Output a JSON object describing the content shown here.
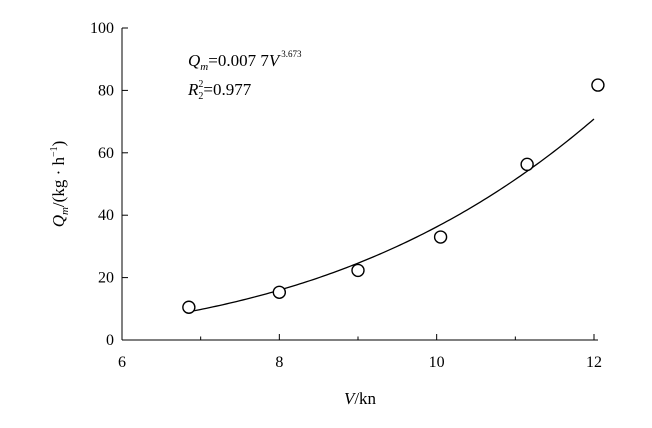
{
  "chart_data": {
    "type": "scatter",
    "title": "",
    "xlabel": {
      "var": "V",
      "unit": "/kn"
    },
    "ylabel": {
      "var": "Q",
      "sub": "m",
      "unit_open": "/(kg · h",
      "unit_exp": "−1",
      "unit_close": ")"
    },
    "xlim": [
      6,
      12
    ],
    "ylim": [
      0,
      100
    ],
    "x_ticks": [
      "6",
      "8",
      "10",
      "12"
    ],
    "y_ticks": [
      "0",
      "20",
      "40",
      "60",
      "80",
      "100"
    ],
    "x_minor_step": 1,
    "grid": false,
    "legend": "none",
    "series": [
      {
        "marker": "open-circle",
        "points": [
          {
            "x": 6.85,
            "y": 10.5
          },
          {
            "x": 8.0,
            "y": 15.3
          },
          {
            "x": 9.0,
            "y": 22.3
          },
          {
            "x": 10.05,
            "y": 33.0
          },
          {
            "x": 11.15,
            "y": 56.3
          },
          {
            "x": 12.05,
            "y": 81.7
          }
        ]
      }
    ],
    "fit": {
      "coef": 0.0077,
      "exponent": 3.673,
      "x_range": [
        6.9,
        12.0
      ]
    },
    "annotations": {
      "equation": {
        "lhs": "Q",
        "lhs_sub": "m",
        "rhs": "=0.007 7",
        "var": "V",
        "exp": "3.673"
      },
      "r2": {
        "lhs": "R",
        "lhs_sup": "2",
        "lhs_sub": "2",
        "rhs": "=0.977"
      }
    }
  }
}
